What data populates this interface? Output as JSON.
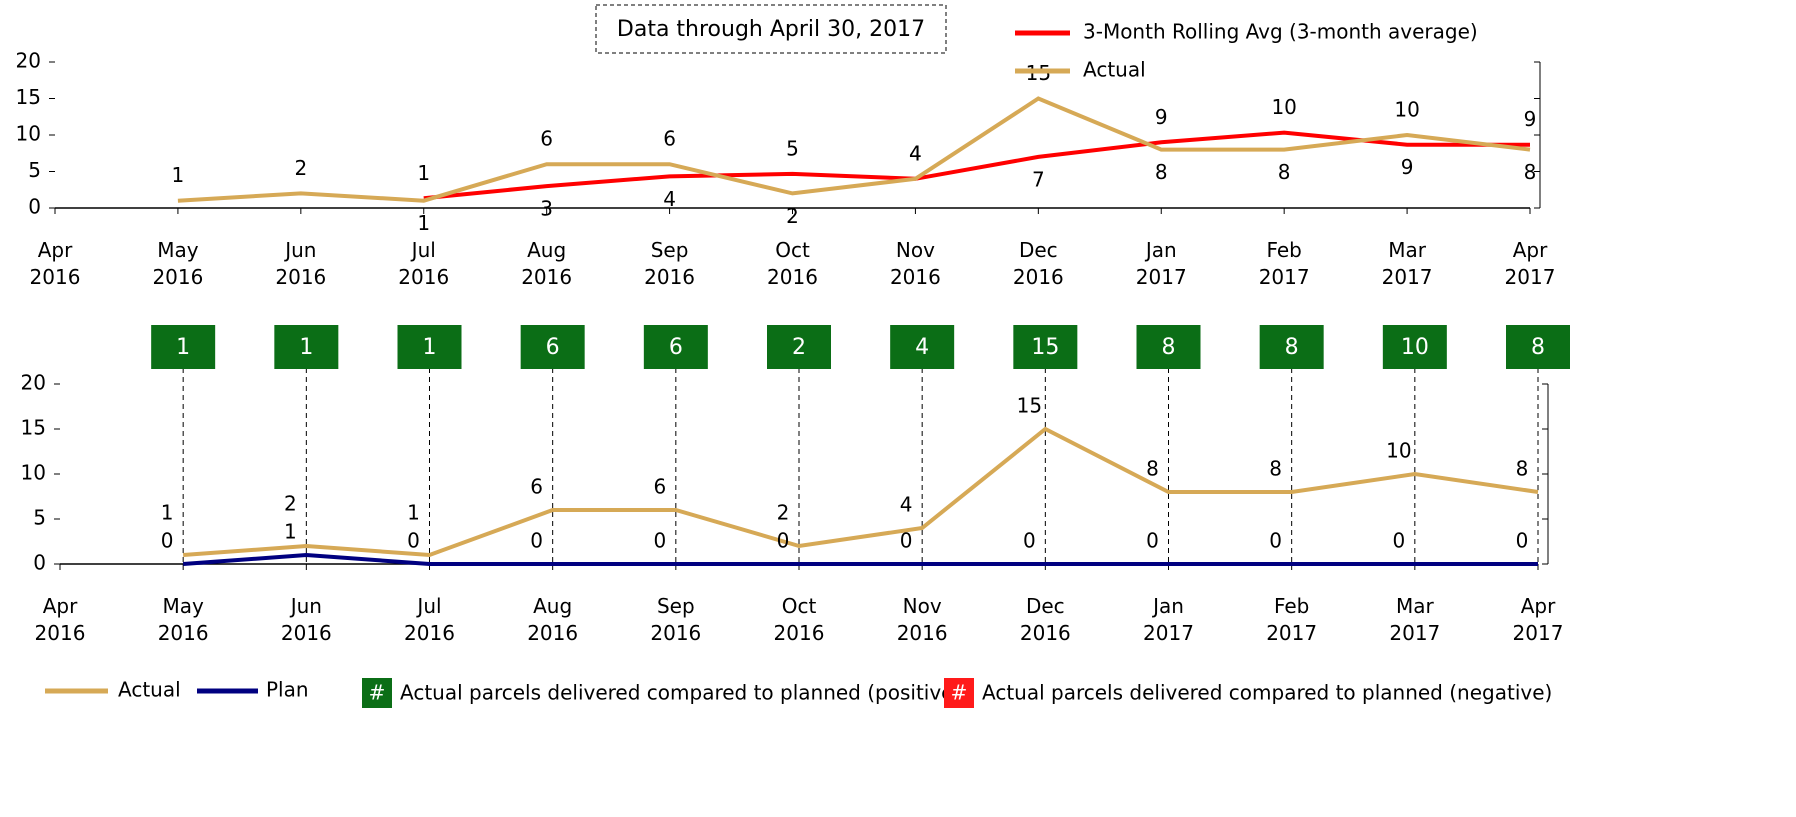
{
  "chart_data": [
    {
      "type": "line",
      "annotation": "Data through April 30, 2017",
      "categories": [
        "Apr 2016",
        "May 2016",
        "Jun 2016",
        "Jul 2016",
        "Aug 2016",
        "Sep 2016",
        "Oct 2016",
        "Nov 2016",
        "Dec 2016",
        "Jan 2017",
        "Feb 2017",
        "Mar 2017",
        "Apr 2017"
      ],
      "series": [
        {
          "name": "3-Month Rolling Avg (3-month average)",
          "color": "#ff0000",
          "values": [
            null,
            null,
            null,
            1.33,
            3,
            4.33,
            4.67,
            4,
            7,
            9,
            10.33,
            8.67,
            8.67
          ],
          "value_labels": [
            null,
            null,
            null,
            "1",
            "3",
            "4",
            "5",
            "4",
            "7",
            "9",
            "10",
            "9",
            "9"
          ]
        },
        {
          "name": "Actual",
          "color": "#d6a956",
          "values": [
            null,
            1,
            2,
            1,
            6,
            6,
            2,
            4,
            15,
            8,
            8,
            10,
            8
          ]
        }
      ],
      "ylim": [
        0,
        20
      ],
      "yticks": [
        0,
        5,
        10,
        15,
        20
      ]
    },
    {
      "type": "line",
      "categories": [
        "Apr 2016",
        "May 2016",
        "Jun 2016",
        "Jul 2016",
        "Aug 2016",
        "Sep 2016",
        "Oct 2016",
        "Nov 2016",
        "Dec 2016",
        "Jan 2017",
        "Feb 2017",
        "Mar 2017",
        "Apr 2017"
      ],
      "series": [
        {
          "name": "Actual",
          "color": "#d6a956",
          "values": [
            null,
            1,
            2,
            1,
            6,
            6,
            2,
            4,
            15,
            8,
            8,
            10,
            8
          ]
        },
        {
          "name": "Plan",
          "color": "#000080",
          "values": [
            null,
            0,
            1,
            0,
            0,
            0,
            0,
            0,
            0,
            0,
            0,
            0,
            0
          ]
        }
      ],
      "differences": [
        null,
        1,
        1,
        1,
        6,
        6,
        2,
        4,
        15,
        8,
        8,
        10,
        8
      ],
      "difference_legend": [
        {
          "symbol": "#",
          "color": "#0b6e16",
          "label": "Actual parcels delivered compared to planned (positive)"
        },
        {
          "symbol": "#",
          "color": "#ff1a1a",
          "label": "Actual parcels delivered compared to planned (negative)"
        }
      ],
      "ylim": [
        0,
        20
      ],
      "yticks": [
        0,
        5,
        10,
        15,
        20
      ]
    }
  ]
}
